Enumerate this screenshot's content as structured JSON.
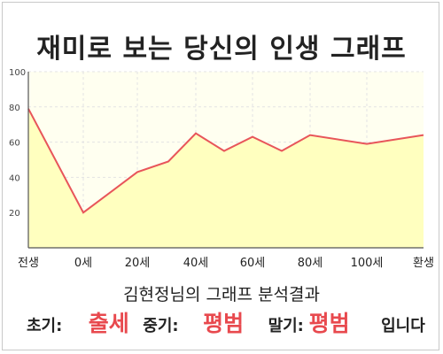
{
  "title": "재미로 보는 당신의 인생 그래프",
  "chart_data": {
    "type": "area",
    "x_categories": [
      "전생",
      "0세",
      "20세",
      "40세",
      "60세",
      "80세",
      "100세",
      "환생"
    ],
    "points": [
      {
        "x": "전생",
        "y": 79
      },
      {
        "x": "0세",
        "y": 20
      },
      {
        "x": "20세",
        "y": 43
      },
      {
        "x": "30세",
        "y": 49
      },
      {
        "x": "40세",
        "y": 65
      },
      {
        "x": "50세",
        "y": 55
      },
      {
        "x": "60세",
        "y": 63
      },
      {
        "x": "70세",
        "y": 55
      },
      {
        "x": "80세",
        "y": 64
      },
      {
        "x": "100세",
        "y": 59
      },
      {
        "x": "환생",
        "y": 64
      }
    ],
    "y_ticks": [
      20,
      40,
      60,
      80,
      100
    ],
    "ylim": [
      0,
      100
    ],
    "grid": true,
    "line_color": "#e8555a",
    "fill_color": "#ffffbf"
  },
  "summary": "김현정님의 그래프 분석결과",
  "result": {
    "early_label": "초기:",
    "early_value": "출세",
    "middle_label": "중기:",
    "middle_value": "평범",
    "late_label": "말기:",
    "late_value": "평범",
    "suffix": "입니다"
  }
}
